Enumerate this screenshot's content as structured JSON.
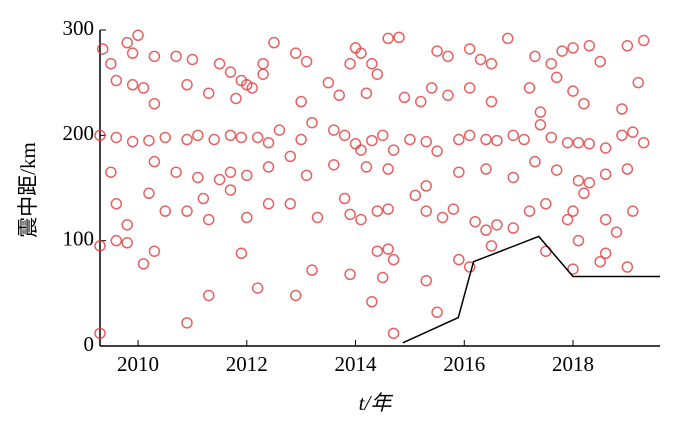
{
  "chart_data": {
    "type": "scatter",
    "x_label": "t/年",
    "y_label": "震中距/km",
    "xlim": [
      2009.3,
      2019.6
    ],
    "xticks": [
      2010,
      2012,
      2014,
      2016,
      2018
    ],
    "ylim": [
      0,
      300
    ],
    "yticks": [
      0,
      100,
      200,
      300
    ],
    "series": [
      {
        "type": "scatter",
        "color": "#e03c3c",
        "x": [
          2009.35,
          2009.5,
          2009.8,
          2010.0,
          2009.9,
          2010.3,
          2010.7,
          2011.0,
          2011.5,
          2011.7,
          2011.9,
          2012.1,
          2012.3,
          2012.3,
          2012.5,
          2012.9,
          2013.1,
          2013.9,
          2014.0,
          2014.1,
          2014.3,
          2014.6,
          2014.8,
          2015.5,
          2015.7,
          2016.1,
          2016.3,
          2016.5,
          2016.8,
          2017.3,
          2017.6,
          2017.8,
          2018.0,
          2018.3,
          2018.5,
          2019.0,
          2019.3,
          2009.6,
          2009.9,
          2010.1,
          2010.3,
          2010.9,
          2011.3,
          2011.8,
          2012.0,
          2013.0,
          2013.5,
          2013.7,
          2014.2,
          2014.4,
          2014.9,
          2015.2,
          2015.4,
          2015.7,
          2016.1,
          2016.5,
          2017.2,
          2017.4,
          2017.7,
          2018.0,
          2018.2,
          2018.9,
          2019.2,
          2009.3,
          2009.6,
          2009.9,
          2010.2,
          2010.5,
          2010.9,
          2011.1,
          2011.4,
          2011.7,
          2011.9,
          2012.2,
          2012.4,
          2012.6,
          2012.8,
          2013.0,
          2013.2,
          2013.6,
          2013.8,
          2014.0,
          2014.1,
          2014.3,
          2014.5,
          2014.7,
          2015.0,
          2015.3,
          2015.5,
          2015.9,
          2016.1,
          2016.4,
          2016.6,
          2016.9,
          2017.1,
          2017.4,
          2017.6,
          2017.9,
          2018.1,
          2018.3,
          2018.6,
          2018.9,
          2019.1,
          2019.3,
          2009.5,
          2010.3,
          2010.7,
          2011.1,
          2011.5,
          2011.7,
          2012.0,
          2012.4,
          2013.1,
          2013.6,
          2014.2,
          2014.6,
          2015.3,
          2015.9,
          2016.4,
          2016.9,
          2017.3,
          2017.7,
          2018.1,
          2018.3,
          2018.6,
          2019.0,
          2009.6,
          2009.8,
          2010.2,
          2010.5,
          2010.9,
          2011.2,
          2011.3,
          2011.7,
          2012.0,
          2012.4,
          2012.8,
          2013.3,
          2013.8,
          2013.9,
          2014.1,
          2014.4,
          2014.6,
          2015.1,
          2015.3,
          2015.6,
          2015.8,
          2016.2,
          2016.4,
          2016.6,
          2016.9,
          2017.2,
          2017.5,
          2017.9,
          2018.0,
          2018.2,
          2018.6,
          2018.8,
          2019.1,
          2009.3,
          2009.6,
          2009.8,
          2010.1,
          2010.3,
          2010.9,
          2011.3,
          2011.9,
          2012.2,
          2012.9,
          2013.2,
          2013.9,
          2014.4,
          2014.6,
          2014.7,
          2014.5,
          2014.3,
          2014.7,
          2015.3,
          2015.5,
          2015.9,
          2016.1,
          2016.5,
          2017.5,
          2018.0,
          2018.1,
          2018.5,
          2018.6,
          2019.0,
          2009.3
        ],
        "values": [
          282,
          268,
          288,
          295,
          278,
          275,
          275,
          272,
          268,
          260,
          252,
          245,
          268,
          258,
          288,
          278,
          270,
          268,
          283,
          278,
          268,
          292,
          293,
          280,
          275,
          282,
          272,
          268,
          292,
          275,
          268,
          280,
          283,
          285,
          270,
          285,
          290,
          252,
          248,
          245,
          230,
          248,
          240,
          235,
          248,
          232,
          250,
          238,
          240,
          258,
          236,
          232,
          245,
          238,
          245,
          232,
          245,
          222,
          255,
          242,
          230,
          225,
          250,
          200,
          198,
          194,
          195,
          198,
          196,
          200,
          196,
          200,
          198,
          198,
          193,
          205,
          180,
          196,
          212,
          205,
          200,
          192,
          186,
          195,
          200,
          186,
          196,
          194,
          185,
          196,
          200,
          196,
          195,
          200,
          196,
          210,
          198,
          193,
          193,
          192,
          188,
          200,
          203,
          193,
          165,
          175,
          165,
          160,
          158,
          165,
          162,
          170,
          162,
          172,
          170,
          168,
          152,
          165,
          168,
          160,
          175,
          167,
          157,
          155,
          163,
          168,
          135,
          115,
          145,
          128,
          128,
          140,
          120,
          148,
          122,
          135,
          135,
          122,
          140,
          125,
          120,
          128,
          130,
          143,
          128,
          122,
          130,
          118,
          110,
          115,
          112,
          128,
          135,
          120,
          128,
          145,
          120,
          108,
          128,
          95,
          100,
          98,
          78,
          90,
          22,
          48,
          88,
          55,
          48,
          72,
          68,
          90,
          92,
          82,
          65,
          42,
          12,
          62,
          32,
          82,
          75,
          95,
          90,
          73,
          100,
          80,
          88,
          75,
          12
        ]
      },
      {
        "type": "line",
        "color": "#000000",
        "x": [
          2014.87,
          2015.89,
          2016.17,
          2017.37,
          2018.0,
          2019.6
        ],
        "values": [
          3,
          27,
          80,
          104,
          66,
          66
        ]
      }
    ]
  }
}
